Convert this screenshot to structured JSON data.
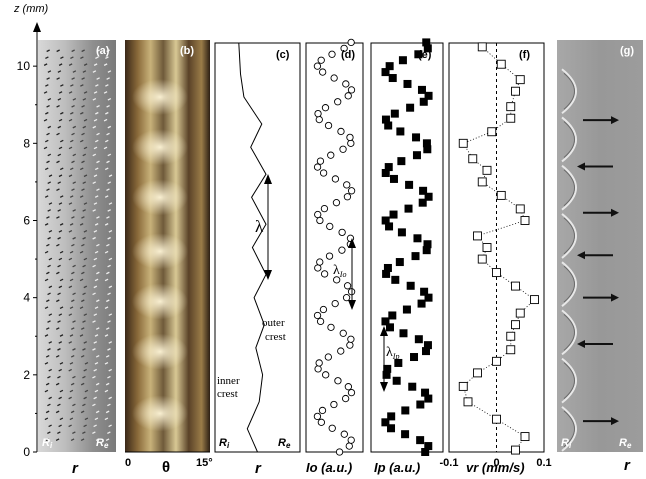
{
  "chart_data": {
    "type": "multi-panel figure",
    "y_axis": {
      "label": "z (mm)",
      "range": [
        0,
        10.6
      ],
      "ticks": [
        "0",
        "2",
        "4",
        "6",
        "8",
        "10"
      ],
      "tick_values": [
        0,
        2,
        4,
        6,
        8,
        10
      ]
    },
    "panels": [
      {
        "id": "a",
        "label": "(a)",
        "type": "image",
        "xlabel": "r",
        "corner_labels": {
          "left": "R",
          "left_sub": "i",
          "right": "R",
          "right_sub": "e"
        }
      },
      {
        "id": "b",
        "label": "(b)",
        "type": "image",
        "xlabel": "θ",
        "tick_labels": [
          "0",
          "15°"
        ]
      },
      {
        "id": "c",
        "label": "(c)",
        "type": "line",
        "xlabel": "r",
        "corner_labels": {
          "left": "R",
          "left_sub": "i",
          "right": "R",
          "right_sub": "e"
        },
        "annotations": {
          "lambda": "λ",
          "outer_crest": [
            "outer",
            "crest"
          ],
          "inner_crest": [
            "inner",
            "crest"
          ]
        },
        "x_range": [
          0,
          1
        ],
        "z": [
          0,
          0.6,
          1.3,
          2.0,
          2.7,
          3.3,
          4.0,
          4.6,
          5.3,
          5.9,
          6.6,
          7.2,
          7.9,
          8.5,
          9.2,
          9.8,
          10.6
        ],
        "r": [
          0.5,
          0.38,
          0.52,
          0.56,
          0.48,
          0.58,
          0.46,
          0.6,
          0.44,
          0.6,
          0.43,
          0.6,
          0.42,
          0.55,
          0.34,
          0.3,
          0.28
        ]
      },
      {
        "id": "d",
        "label": "(d)",
        "type": "scatter",
        "marker": "open-circle",
        "xlabel": "Io (a.u.)",
        "annotations": {
          "lambda": "λ",
          "lambda_sub": "Io"
        },
        "period_mm": 1.3,
        "phase": 0.3,
        "samples_per_mm": 6.5,
        "x_mid": 0.5,
        "x_amp": 0.3
      },
      {
        "id": "e",
        "label": "(e)",
        "type": "scatter",
        "marker": "filled-square",
        "xlabel": "Ip (a.u.)",
        "annotations": {
          "lambda": "λ",
          "lambda_sub": "Ip"
        },
        "period_mm": 1.3,
        "phase": 1.0,
        "samples_per_mm": 6.5,
        "x_mid": 0.5,
        "x_amp": 0.3
      },
      {
        "id": "f",
        "label": "(f)",
        "type": "scatter",
        "marker": "open-square",
        "connector": "dotted",
        "xlabel": "vr (mm/s)",
        "x_range": [
          -0.1,
          0.1
        ],
        "x_ticks": [
          "-0.1",
          "0",
          "0.1"
        ],
        "x_tick_values": [
          -0.1,
          0,
          0.1
        ],
        "z": [
          0.05,
          0.4,
          0.85,
          1.3,
          1.7,
          2.05,
          2.35,
          2.65,
          3.0,
          3.3,
          3.6,
          3.95,
          4.3,
          4.65,
          5.0,
          5.3,
          5.6,
          6.0,
          6.3,
          6.65,
          7.0,
          7.3,
          7.6,
          8.0,
          8.3,
          8.65,
          8.95,
          9.35,
          9.65,
          10.05,
          10.5
        ],
        "vr": [
          0.04,
          0.06,
          0.0,
          -0.06,
          -0.07,
          -0.04,
          0.0,
          0.03,
          0.03,
          0.04,
          0.05,
          0.08,
          0.04,
          0.0,
          -0.03,
          -0.02,
          -0.04,
          0.06,
          0.05,
          0.01,
          -0.03,
          -0.02,
          -0.05,
          -0.07,
          -0.01,
          0.03,
          0.03,
          0.04,
          0.05,
          0.01,
          -0.03
        ]
      },
      {
        "id": "g",
        "label": "(g)",
        "type": "image",
        "xlabel": "r",
        "corner_labels": {
          "left": "R",
          "left_sub": "i",
          "right": "R",
          "right_sub": "e"
        },
        "arrow_z": [
          0.8,
          2.8,
          4.0,
          5.1,
          6.2,
          7.4,
          8.6
        ],
        "arrow_direction": [
          "right",
          "left",
          "right",
          "left",
          "right",
          "left",
          "right"
        ]
      }
    ]
  }
}
